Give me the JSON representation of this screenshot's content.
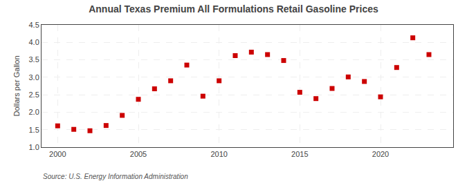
{
  "chart_data": {
    "type": "scatter",
    "title": "Annual Texas Premium All Formulations Retail Gasoline Prices",
    "ylabel": "Dollars per Gallon",
    "source": "Source: U.S. Energy Information Administration",
    "x": [
      2000,
      2001,
      2002,
      2003,
      2004,
      2005,
      2006,
      2007,
      2008,
      2009,
      2010,
      2011,
      2012,
      2013,
      2014,
      2015,
      2016,
      2017,
      2018,
      2019,
      2020,
      2021,
      2022,
      2023
    ],
    "values": [
      1.61,
      1.51,
      1.47,
      1.62,
      1.91,
      2.37,
      2.67,
      2.9,
      3.35,
      2.46,
      2.9,
      3.62,
      3.72,
      3.65,
      3.48,
      2.57,
      2.39,
      2.68,
      3.01,
      2.88,
      2.44,
      3.28,
      4.13,
      3.65
    ],
    "color": "#cc0000",
    "marker": "square",
    "xlim": [
      1999,
      2024.5
    ],
    "ylim": [
      1.0,
      4.5
    ],
    "xticks": [
      2000,
      2005,
      2010,
      2015,
      2020
    ],
    "yticks": [
      {
        "value": 1.0,
        "label": "1.0"
      },
      1.5,
      {
        "value": 2.0,
        "label": "2.0"
      },
      2.5,
      {
        "value": 3.0,
        "label": "3.0"
      },
      3.5,
      {
        "value": 4.0,
        "label": "4.0"
      },
      4.5
    ],
    "grid": true
  }
}
